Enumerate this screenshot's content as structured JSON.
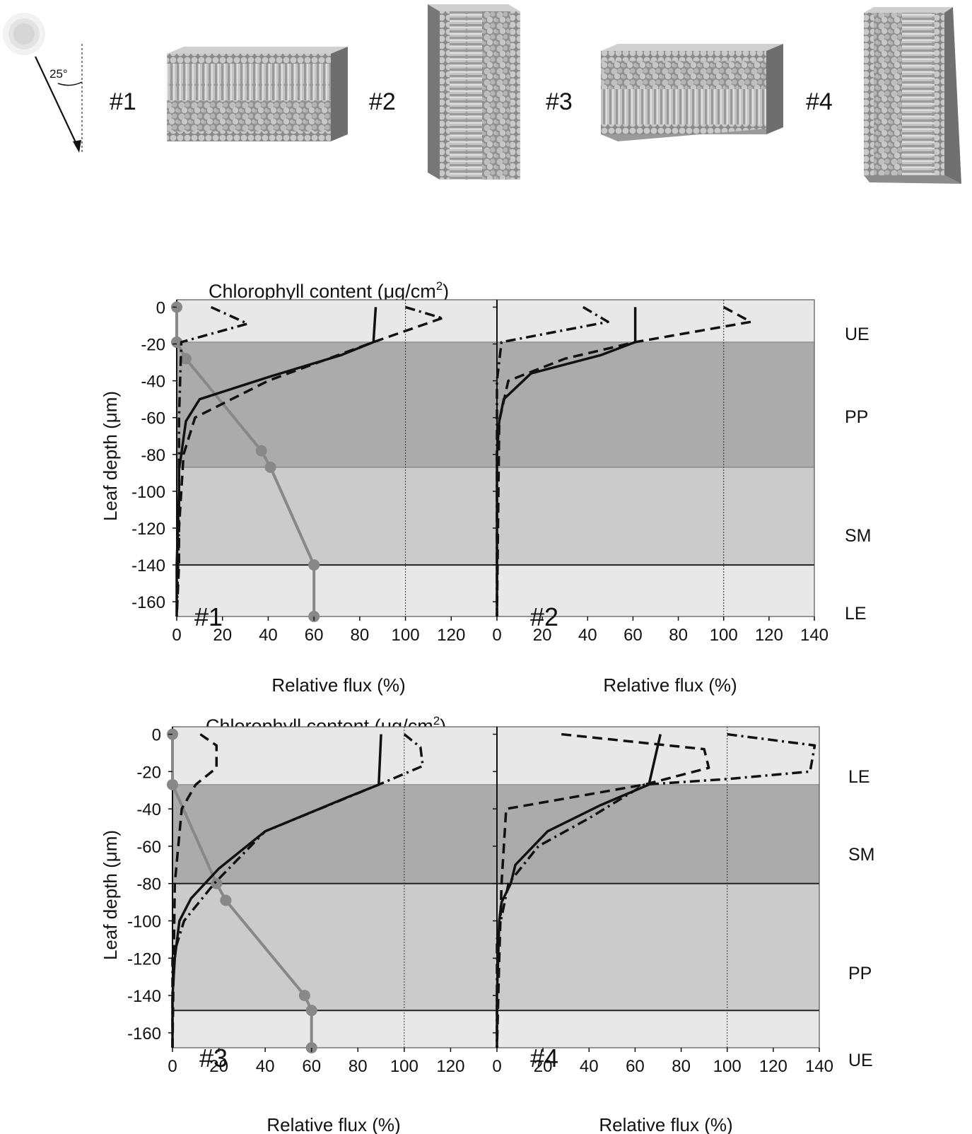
{
  "colors": {
    "epidermis": "#e8e8e8",
    "palisade": "#ababab",
    "spongy": "#cbcbcb",
    "chlorophyll_line": "#888888",
    "flux_line": "#111111",
    "block_dark": "#7d7d7d",
    "block_mid": "#a6a6a6",
    "block_light": "#d2d2d2"
  },
  "top_panel": {
    "sun_icon": "sun-icon",
    "angle_label": "25°",
    "models": [
      {
        "label": "#1",
        "orientation": "horizontal",
        "order": [
          "epidermis",
          "palisade",
          "spongy",
          "epidermis"
        ]
      },
      {
        "label": "#2",
        "orientation": "vertical",
        "order": [
          "epidermis",
          "palisade",
          "spongy",
          "epidermis"
        ]
      },
      {
        "label": "#3",
        "orientation": "horizontal",
        "order": [
          "epidermis",
          "spongy",
          "palisade",
          "epidermis"
        ]
      },
      {
        "label": "#4",
        "orientation": "vertical",
        "order": [
          "epidermis",
          "spongy",
          "palisade",
          "epidermis"
        ]
      }
    ]
  },
  "chart_data": [
    {
      "type": "line",
      "title": "Chlorophyll content (μg/cm",
      "title_sup": "2",
      "title_close": ")",
      "ylabel": "Leaf depth (μm)",
      "ylim": [
        -168,
        4
      ],
      "yticks": [
        0,
        -20,
        -40,
        -60,
        -80,
        -100,
        -120,
        -140,
        -160
      ],
      "layers": [
        {
          "name": "UE",
          "top": 0,
          "bottom": -19,
          "shade": "epidermis"
        },
        {
          "name": "PP",
          "top": -19,
          "bottom": -87,
          "shade": "palisade"
        },
        {
          "name": "SM",
          "top": -87,
          "bottom": -140,
          "shade": "spongy"
        },
        {
          "name": "LE",
          "top": -140,
          "bottom": -168,
          "shade": "epidermis"
        }
      ],
      "panels": [
        {
          "label": "#1",
          "xlabel": "Relative flux (%)",
          "xlim": [
            0,
            140
          ],
          "xticks": [
            0,
            20,
            40,
            60,
            80,
            100,
            120
          ],
          "series": [
            {
              "name": "",
              "style": "chlorophyll",
              "x": [
                0,
                0,
                4,
                37,
                41,
                60,
                60
              ],
              "y": [
                0,
                -19,
                -28,
                -78,
                -87,
                -140,
                -168
              ]
            },
            {
              "name": "",
              "style": "solid",
              "x": [
                87,
                86,
                72,
                40,
                10,
                4,
                2,
                1,
                1,
                0,
                0
              ],
              "y": [
                0,
                -19,
                -26,
                -38,
                -50,
                -62,
                -80,
                -88,
                -100,
                -140,
                -168
              ]
            },
            {
              "name": "",
              "style": "dashed",
              "x": [
                116,
                86,
                40,
                8,
                3,
                2,
                1,
                1,
                0
              ],
              "y": [
                -6,
                -19,
                -40,
                -60,
                -80,
                -100,
                -120,
                -140,
                -168
              ]
            },
            {
              "name": "",
              "style": "dashdot",
              "x": [
                15,
                31,
                2,
                1,
                1,
                0
              ],
              "y": [
                0,
                -9,
                -19,
                -60,
                -120,
                -168
              ]
            },
            {
              "name": "",
              "style": "dashdot",
              "x": [
                100,
                116
              ],
              "y": [
                0,
                -6
              ]
            }
          ]
        },
        {
          "label": "#2",
          "xlabel": "Relative flux (%)",
          "xlim": [
            0,
            140
          ],
          "xticks": [
            0,
            20,
            40,
            60,
            80,
            100,
            120,
            140
          ],
          "series": [
            {
              "name": "",
              "style": "solid",
              "x": [
                61,
                61,
                46,
                15,
                3,
                1,
                0,
                0
              ],
              "y": [
                0,
                -19,
                -26,
                -36,
                -50,
                -62,
                -80,
                -168
              ]
            },
            {
              "name": "",
              "style": "dashed",
              "x": [
                100,
                112,
                61,
                30,
                5,
                1,
                0
              ],
              "y": [
                0,
                -8,
                -19,
                -28,
                -40,
                -62,
                -168
              ]
            },
            {
              "name": "",
              "style": "dashdot",
              "x": [
                38,
                49,
                2,
                0,
                0
              ],
              "y": [
                0,
                -8,
                -19,
                -40,
                -168
              ]
            }
          ]
        }
      ]
    },
    {
      "type": "line",
      "title": "Chlorophyll content (μg/cm",
      "title_sup": "2",
      "title_close": ")",
      "ylabel": "Leaf depth (μm)",
      "ylim": [
        -168,
        4
      ],
      "yticks": [
        0,
        -20,
        -40,
        -60,
        -80,
        -100,
        -120,
        -140,
        -160
      ],
      "layers": [
        {
          "name": "LE",
          "top": 0,
          "bottom": -27,
          "shade": "epidermis"
        },
        {
          "name": "SM",
          "top": -27,
          "bottom": -80,
          "shade": "palisade"
        },
        {
          "name": "PP",
          "top": -80,
          "bottom": -148,
          "shade": "spongy"
        },
        {
          "name": "UE",
          "top": -148,
          "bottom": -168,
          "shade": "epidermis"
        }
      ],
      "panels": [
        {
          "label": "#3",
          "xlabel": "Relative flux (%)",
          "xlim": [
            0,
            140
          ],
          "xticks": [
            0,
            20,
            40,
            60,
            80,
            100,
            120
          ],
          "series": [
            {
              "name": "",
              "style": "chlorophyll",
              "x": [
                0,
                0,
                19,
                23,
                57,
                60,
                60
              ],
              "y": [
                0,
                -27,
                -80,
                -89,
                -140,
                -148,
                -168
              ]
            },
            {
              "name": "",
              "style": "solid",
              "x": [
                90,
                89,
                75,
                40,
                20,
                8,
                3,
                1,
                0,
                0
              ],
              "y": [
                0,
                -27,
                -34,
                -52,
                -72,
                -88,
                -100,
                -120,
                -140,
                -168
              ]
            },
            {
              "name": "",
              "style": "dashed",
              "x": [
                12,
                19,
                19,
                10,
                4,
                1,
                0
              ],
              "y": [
                0,
                -6,
                -18,
                -27,
                -40,
                -80,
                -168
              ]
            },
            {
              "name": "",
              "style": "dashdot",
              "x": [
                100,
                107,
                108,
                89,
                40,
                18,
                5,
                0,
                0
              ],
              "y": [
                0,
                -7,
                -17,
                -27,
                -52,
                -80,
                -100,
                -120,
                -168
              ]
            }
          ]
        },
        {
          "label": "#4",
          "xlabel": "Relative flux (%)",
          "xlim": [
            0,
            140
          ],
          "xticks": [
            0,
            20,
            40,
            60,
            80,
            100,
            120,
            140
          ],
          "series": [
            {
              "name": "",
              "style": "solid",
              "x": [
                71,
                66,
                45,
                22,
                8,
                6,
                2,
                1,
                0,
                0
              ],
              "y": [
                0,
                -27,
                -38,
                -52,
                -70,
                -80,
                -90,
                -100,
                -140,
                -168
              ]
            },
            {
              "name": "",
              "style": "dashed",
              "x": [
                28,
                90,
                92,
                64,
                4,
                2,
                1,
                0
              ],
              "y": [
                0,
                -8,
                -18,
                -27,
                -40,
                -80,
                -120,
                -168
              ]
            },
            {
              "name": "",
              "style": "dashdot",
              "x": [
                100,
                138,
                136,
                100,
                64,
                40,
                18,
                5,
                0,
                0
              ],
              "y": [
                0,
                -6,
                -20,
                -24,
                -27,
                -45,
                -60,
                -80,
                -110,
                -168
              ]
            }
          ]
        }
      ]
    }
  ]
}
